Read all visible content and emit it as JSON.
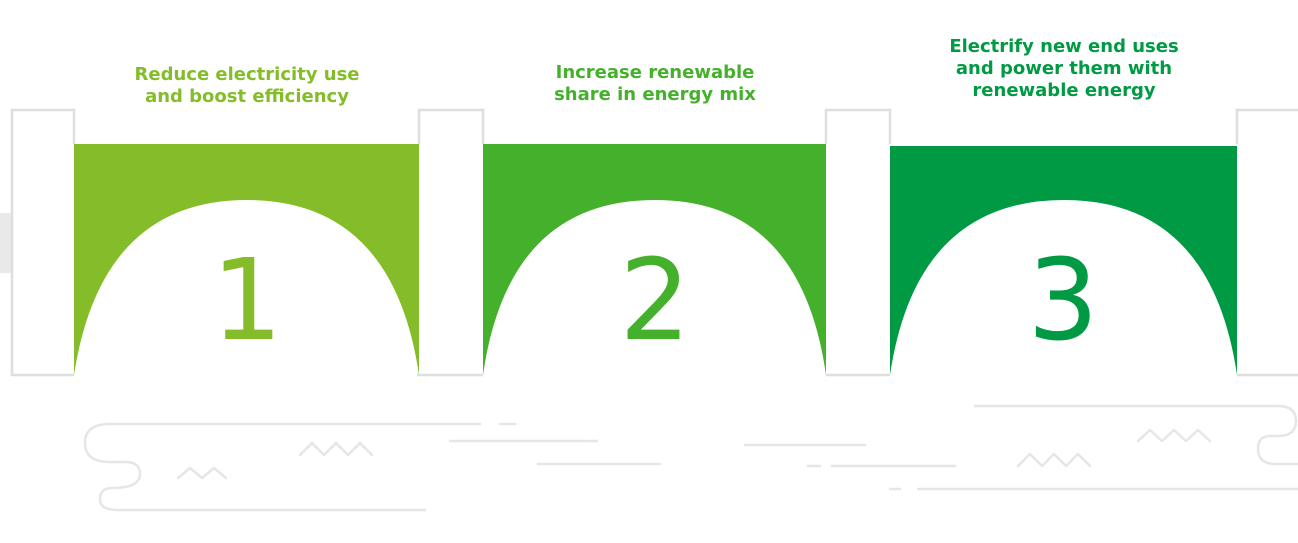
{
  "steps": [
    {
      "number": "1",
      "title_line1": "Reduce electricity use",
      "title_line2": "and boost efficiency",
      "color": "#84bd29"
    },
    {
      "number": "2",
      "title_line1": "Increase renewable",
      "title_line2": "share in energy mix",
      "color": "#45b02c"
    },
    {
      "number": "3",
      "title_line1": "Electrify new end uses",
      "title_line2": "and power them with",
      "title_line3": "renewable energy",
      "color": "#009a44"
    }
  ],
  "colors": {
    "outline": "#dedede",
    "water": "#e6e6e6",
    "background": "#ffffff"
  }
}
